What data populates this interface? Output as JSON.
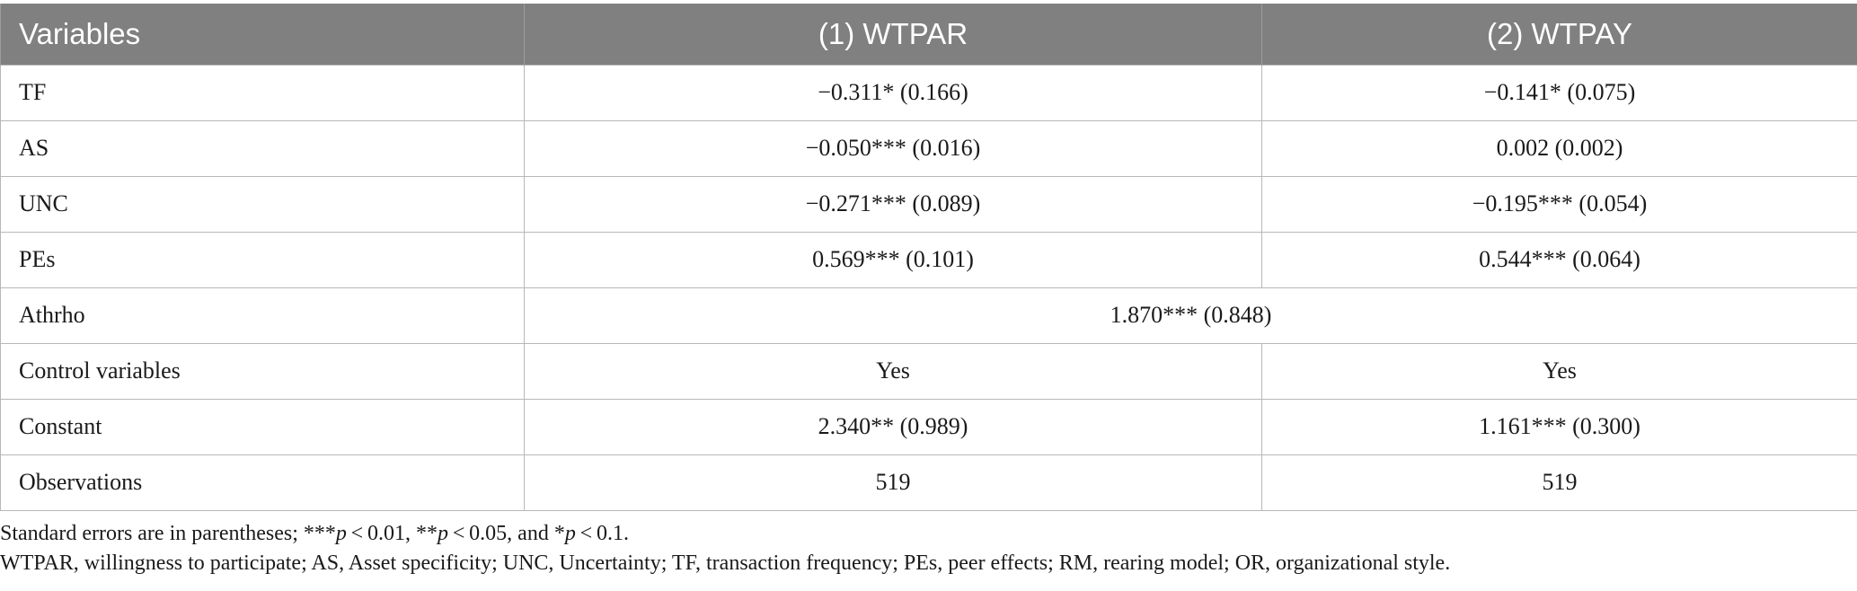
{
  "table": {
    "headers": [
      "Variables",
      "(1) WTPAR",
      "(2) WTPAY"
    ],
    "rows": [
      {
        "label": "TF",
        "col1": "−0.311* (0.166)",
        "col2": "−0.141* (0.075)"
      },
      {
        "label": "AS",
        "col1": "−0.050*** (0.016)",
        "col2": "0.002 (0.002)"
      },
      {
        "label": "UNC",
        "col1": "−0.271*** (0.089)",
        "col2": "−0.195*** (0.054)"
      },
      {
        "label": "PEs",
        "col1": "0.569*** (0.101)",
        "col2": "0.544*** (0.064)"
      },
      {
        "label": "Athrho",
        "merged": "1.870*** (0.848)"
      },
      {
        "label": "Control variables",
        "col1": "Yes",
        "col2": "Yes"
      },
      {
        "label": "Constant",
        "col1": "2.340** (0.989)",
        "col2": "1.161*** (0.300)"
      },
      {
        "label": "Observations",
        "col1": "519",
        "col2": "519"
      }
    ]
  },
  "notes": {
    "line1": {
      "a": "Standard errors are in parentheses; ***",
      "p1": "p",
      "b": " < 0.01, **",
      "p2": "p",
      "c": " < 0.05, and *",
      "p3": "p",
      "d": " < 0.1."
    },
    "line2": "WTPAR, willingness to participate; AS, Asset specificity; UNC, Uncertainty; TF, transaction frequency; PEs, peer effects; RM, rearing model; OR, organizational style."
  },
  "colors": {
    "header_bg": "#808080",
    "header_text": "#ffffff",
    "border": "#b8b8b8"
  }
}
